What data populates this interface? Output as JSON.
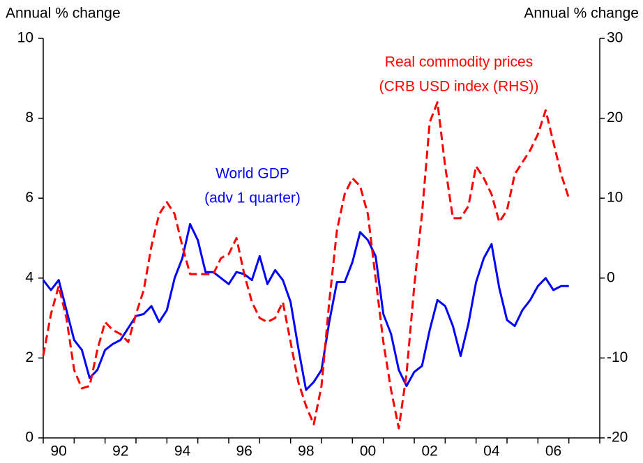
{
  "chart_data": {
    "type": "line",
    "y_label": "Annual % change",
    "y2_label": "Annual % change",
    "annotations": [
      {
        "lines": [
          "World GDP",
          "(adv 1 quarter)"
        ],
        "color": "#0000ff"
      },
      {
        "lines": [
          "Real commodity prices",
          "(CRB USD index (RHS))"
        ],
        "color": "#ff0000"
      }
    ],
    "x": [
      1990,
      1990.25,
      1990.5,
      1990.75,
      1991,
      1991.25,
      1991.5,
      1991.75,
      1992,
      1992.25,
      1992.5,
      1992.75,
      1993,
      1993.25,
      1993.5,
      1993.75,
      1994,
      1994.25,
      1994.5,
      1994.75,
      1995,
      1995.25,
      1995.5,
      1995.75,
      1996,
      1996.25,
      1996.5,
      1996.75,
      1997,
      1997.25,
      1997.5,
      1997.75,
      1998,
      1998.25,
      1998.5,
      1998.75,
      1999,
      1999.25,
      1999.5,
      1999.75,
      2000,
      2000.25,
      2000.5,
      2000.75,
      2001,
      2001.25,
      2001.5,
      2001.75,
      2002,
      2002.25,
      2002.5,
      2002.75,
      2003,
      2003.25,
      2003.5,
      2003.75,
      2004,
      2004.25,
      2004.5,
      2004.75,
      2005,
      2005.25,
      2005.5,
      2005.75,
      2006,
      2006.25,
      2006.5,
      2006.75,
      2007
    ],
    "series": [
      {
        "name": "World GDP",
        "color": "#0000ff",
        "dash": false,
        "values": [
          3.95,
          3.7,
          3.95,
          3.2,
          2.45,
          2.2,
          1.5,
          1.7,
          2.2,
          2.35,
          2.45,
          2.75,
          3.05,
          3.1,
          3.3,
          2.9,
          3.2,
          4.0,
          4.5,
          5.35,
          4.95,
          4.15,
          4.15,
          4.0,
          3.85,
          4.15,
          4.1,
          3.95,
          4.55,
          3.85,
          4.2,
          3.95,
          3.4,
          2.25,
          1.2,
          1.4,
          1.7,
          2.9,
          3.9,
          3.9,
          4.4,
          5.15,
          4.95,
          4.55,
          3.1,
          2.6,
          1.7,
          1.3,
          1.65,
          1.8,
          2.7,
          3.45,
          3.3,
          2.8,
          2.05,
          2.85,
          3.9,
          4.5,
          4.85,
          3.75,
          2.95,
          2.8,
          3.2,
          3.45,
          3.8,
          4.0,
          3.7,
          3.8,
          3.8
        ]
      },
      {
        "name": "Real commodity prices",
        "color": "#ff0000",
        "dash": true,
        "axis": "y2",
        "values": [
          -9.7,
          -4.5,
          -1,
          -5,
          -11.5,
          -13.8,
          -13.5,
          -9,
          -5.5,
          -6.5,
          -7,
          -8,
          -4.5,
          -1.5,
          4,
          8,
          9.5,
          8,
          4,
          0.5,
          0.5,
          0.5,
          0.5,
          2.5,
          3,
          5,
          0.5,
          -3,
          -5,
          -5.5,
          -5,
          -3,
          -8,
          -13,
          -16,
          -18.3,
          -13.5,
          -3,
          6,
          10.5,
          12.5,
          11.5,
          8,
          0,
          -8,
          -14,
          -18.8,
          -12,
          -1,
          8,
          19.5,
          22,
          14,
          7.5,
          7.5,
          9,
          14,
          12.5,
          10.5,
          7,
          8.5,
          13,
          14.5,
          16,
          18,
          21,
          17,
          13,
          10
        ]
      }
    ],
    "xlim": [
      1990,
      2008
    ],
    "xticks": [
      {
        "value": 1990.5,
        "label": "90"
      },
      {
        "value": 1992.5,
        "label": "92"
      },
      {
        "value": 1994.5,
        "label": "94"
      },
      {
        "value": 1996.5,
        "label": "96"
      },
      {
        "value": 1998.5,
        "label": "98"
      },
      {
        "value": 2000.5,
        "label": "00"
      },
      {
        "value": 2002.5,
        "label": "02"
      },
      {
        "value": 2004.5,
        "label": "04"
      },
      {
        "value": 2006.5,
        "label": "06"
      }
    ],
    "ylim": [
      0,
      10
    ],
    "yticks": [
      0,
      2,
      4,
      6,
      8,
      10
    ],
    "y2lim": [
      -20,
      30
    ],
    "y2ticks": [
      -20,
      -10,
      0,
      10,
      20,
      30
    ],
    "grid": false
  }
}
